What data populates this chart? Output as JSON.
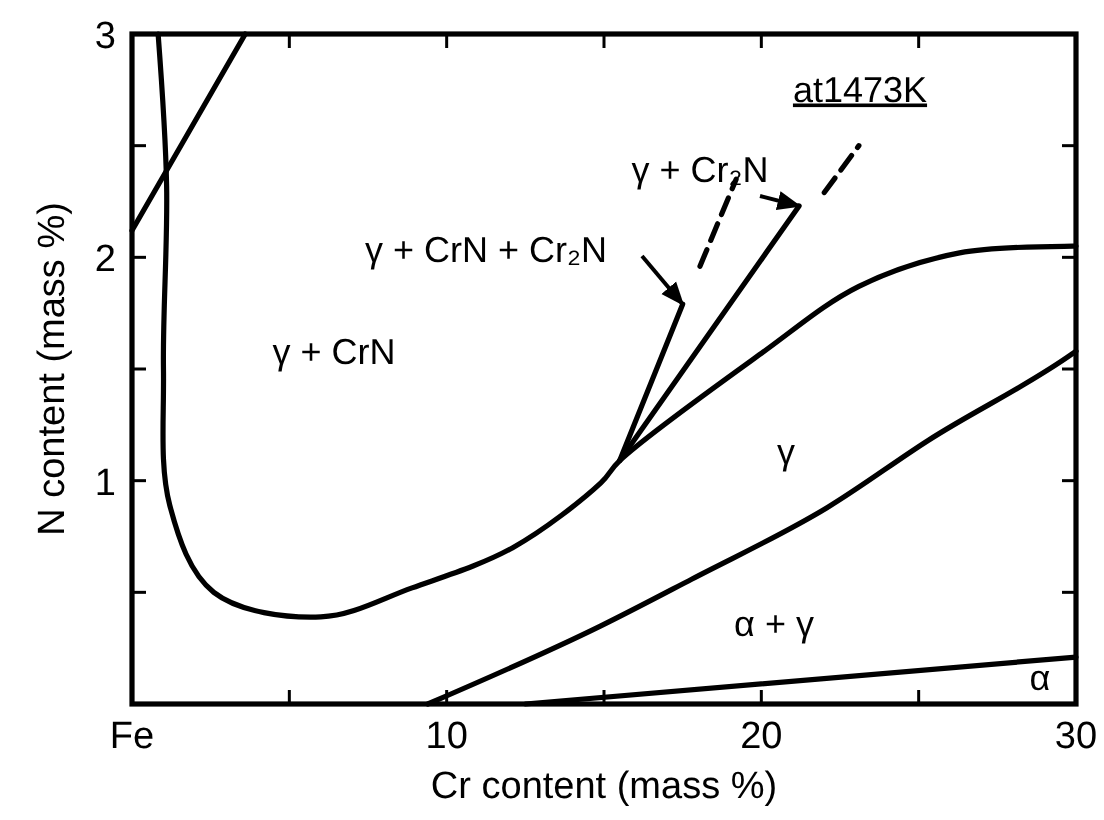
{
  "chart_data": {
    "type": "line",
    "xlabel": "Cr content  (mass %)",
    "ylabel": "N content  (mass %)",
    "xlim": [
      0,
      30
    ],
    "ylim": [
      0,
      3
    ],
    "xticks": [
      {
        "value": 0,
        "label": "Fe"
      },
      {
        "value": 5,
        "label": null
      },
      10,
      {
        "value": 15,
        "label": null
      },
      20,
      {
        "value": 25,
        "label": null
      },
      30
    ],
    "yticks": [
      {
        "value": 0.5,
        "label": null
      },
      1,
      {
        "value": 1.5,
        "label": null
      },
      2,
      {
        "value": 2.5,
        "label": null
      },
      3
    ],
    "grid": false,
    "marker": "none",
    "series": [
      {
        "color": "#000000",
        "x": [
          0.83,
          1.1,
          1.0,
          1.2,
          2.6,
          6.0,
          8.9,
          12.1,
          14.9,
          15.5,
          20.0,
          23.1,
          26.3,
          29.9,
          30
        ],
        "values": [
          3.0,
          2.32,
          1.5,
          0.89,
          0.5,
          0.39,
          0.52,
          0.7,
          0.99,
          1.09,
          1.57,
          1.87,
          2.02,
          2.05,
          2.05
        ]
      },
      {
        "color": "#000000",
        "x": [
          15.5,
          17.5
        ],
        "values": [
          1.09,
          1.79
        ]
      },
      {
        "color": "#000000",
        "line_style": "dashed",
        "x": [
          18.05,
          19.2
        ],
        "values": [
          1.96,
          2.35
        ]
      },
      {
        "color": "#000000",
        "x": [
          15.5,
          21.2
        ],
        "values": [
          1.09,
          2.23
        ]
      },
      {
        "color": "#000000",
        "line_style": "dashed",
        "x": [
          22.0,
          23.1
        ],
        "values": [
          2.29,
          2.5
        ]
      },
      {
        "color": "#000000",
        "x": [
          0,
          3.6
        ],
        "values": [
          2.12,
          3.0
        ]
      },
      {
        "color": "#000000",
        "x": [
          9.4,
          14.9,
          17.8,
          22.1,
          25.3,
          29.9,
          30
        ],
        "values": [
          0,
          0.35,
          0.56,
          0.88,
          1.18,
          1.57,
          1.58
        ]
      },
      {
        "color": "#000000",
        "x": [
          12.5,
          30
        ],
        "values": [
          0,
          0.21
        ]
      }
    ],
    "annotations": [
      "at1473K",
      {
        "text": "γ + Cr₂N",
        "x": 21.2,
        "y": 2.23
      },
      {
        "text": "γ + CrN + Cr₂N",
        "x": 17.5,
        "y": 1.79
      },
      "γ + CrN",
      "γ",
      "α + γ",
      "α"
    ]
  }
}
